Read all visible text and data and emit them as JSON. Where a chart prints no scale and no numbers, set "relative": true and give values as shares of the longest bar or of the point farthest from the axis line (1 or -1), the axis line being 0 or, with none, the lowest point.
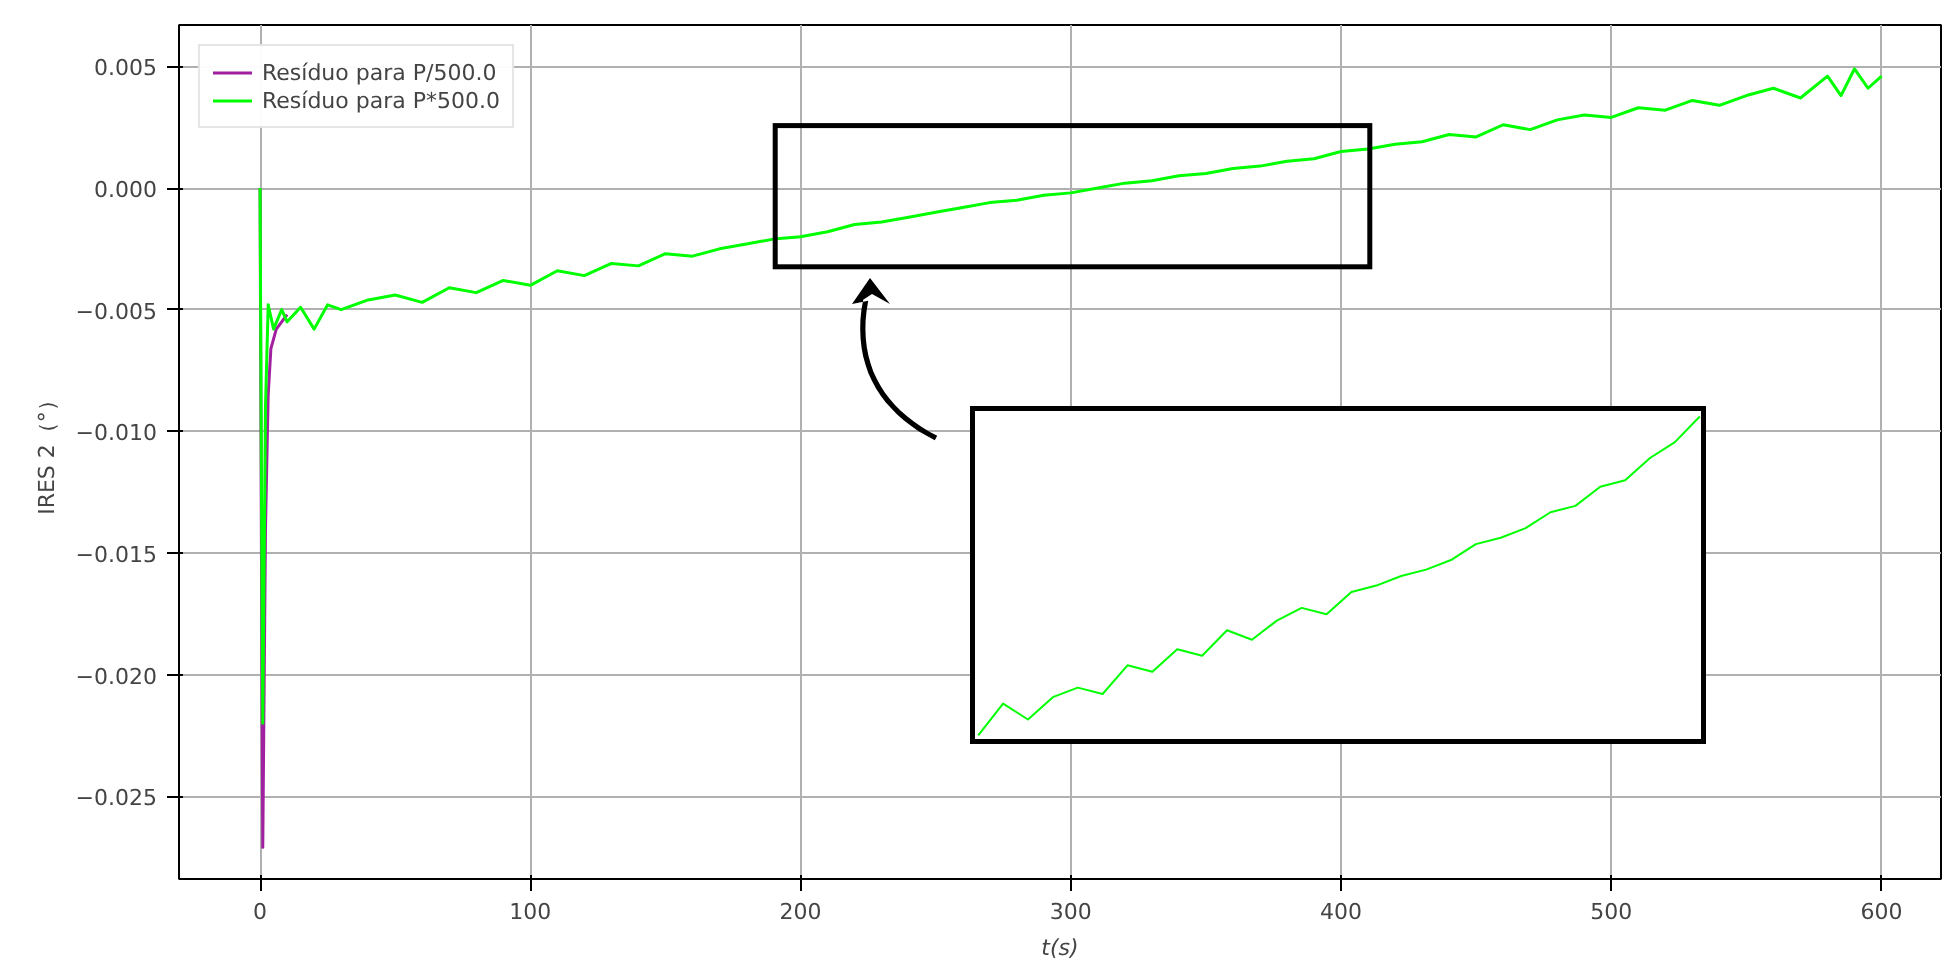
{
  "chart_data": [
    {
      "type": "line",
      "xlabel": "t(s)",
      "ylabel": "IRES 2（°）",
      "xlim": [
        -30,
        622
      ],
      "xticks": [
        0,
        100,
        200,
        300,
        400,
        500,
        600
      ],
      "ylim": [
        -0.0284,
        0.0067
      ],
      "yticks": [
        {
          "value": -0.025,
          "label": "−0.025"
        },
        {
          "value": -0.02,
          "label": "−0.020"
        },
        {
          "value": -0.015,
          "label": "−0.015"
        },
        {
          "value": -0.01,
          "label": "−0.010"
        },
        {
          "value": -0.005,
          "label": "−0.005"
        },
        {
          "value": 0,
          "label": "0.000"
        },
        {
          "value": 0.005,
          "label": "0.005"
        }
      ],
      "grid": true,
      "legend": "top left",
      "line_style": "solid",
      "marker": "none",
      "series": [
        {
          "name": "Resíduo para P/500.0",
          "color": "#a020a0",
          "x": [
            0,
            0.5,
            1,
            2,
            3,
            4,
            6,
            10
          ],
          "values": [
            0,
            -0.015,
            -0.0271,
            -0.014,
            -0.0085,
            -0.0066,
            -0.0058,
            -0.0052
          ]
        },
        {
          "name": "Resíduo para P*500.0",
          "color": "#00ff00",
          "x": [
            0,
            0.5,
            1,
            2,
            3,
            5,
            8,
            10,
            15,
            20,
            25,
            30,
            40,
            50,
            60,
            70,
            80,
            90,
            100,
            110,
            120,
            130,
            140,
            150,
            160,
            170,
            180,
            190,
            200,
            210,
            220,
            230,
            240,
            250,
            260,
            270,
            280,
            290,
            300,
            310,
            320,
            330,
            340,
            350,
            360,
            370,
            380,
            390,
            400,
            410,
            420,
            430,
            440,
            450,
            460,
            470,
            480,
            490,
            500,
            510,
            520,
            530,
            540,
            550,
            560,
            570,
            580,
            585,
            590,
            595,
            600
          ],
          "values": [
            0,
            -0.012,
            -0.022,
            -0.009,
            -0.0048,
            -0.0058,
            -0.005,
            -0.0055,
            -0.0049,
            -0.0058,
            -0.0048,
            -0.005,
            -0.0046,
            -0.0044,
            -0.0047,
            -0.0041,
            -0.0043,
            -0.0038,
            -0.004,
            -0.0034,
            -0.0036,
            -0.0031,
            -0.0032,
            -0.0027,
            -0.0028,
            -0.0025,
            -0.0023,
            -0.0021,
            -0.002,
            -0.0018,
            -0.0015,
            -0.0014,
            -0.0012,
            -0.001,
            -0.0008,
            -0.0006,
            -0.0005,
            -0.0003,
            -0.0002,
            0.0,
            0.0002,
            0.0003,
            0.0005,
            0.0006,
            0.0008,
            0.0009,
            0.0011,
            0.0012,
            0.0015,
            0.0016,
            0.0018,
            0.0019,
            0.0022,
            0.0021,
            0.0026,
            0.0024,
            0.0028,
            0.003,
            0.0029,
            0.0033,
            0.0032,
            0.0036,
            0.0034,
            0.0038,
            0.0041,
            0.0037,
            0.0046,
            0.0038,
            0.0049,
            0.0041,
            0.0046
          ]
        }
      ]
    },
    {
      "type": "line",
      "relative": true,
      "categories": [
        null,
        null,
        null,
        null,
        null,
        null,
        null,
        null,
        null,
        null,
        null,
        null,
        null,
        null,
        null,
        null,
        null,
        null,
        null,
        null,
        null,
        null,
        null,
        null,
        null,
        null,
        null,
        null,
        null,
        null
      ],
      "series": [
        {
          "color": "#00ff00",
          "values": [
            0.0,
            0.1,
            0.05,
            0.12,
            0.15,
            0.13,
            0.22,
            0.2,
            0.27,
            0.25,
            0.33,
            0.3,
            0.36,
            0.4,
            0.38,
            0.45,
            0.47,
            0.5,
            0.52,
            0.55,
            0.6,
            0.62,
            0.65,
            0.7,
            0.72,
            0.78,
            0.8,
            0.87,
            0.92,
            1.0
          ]
        }
      ]
    }
  ]
}
